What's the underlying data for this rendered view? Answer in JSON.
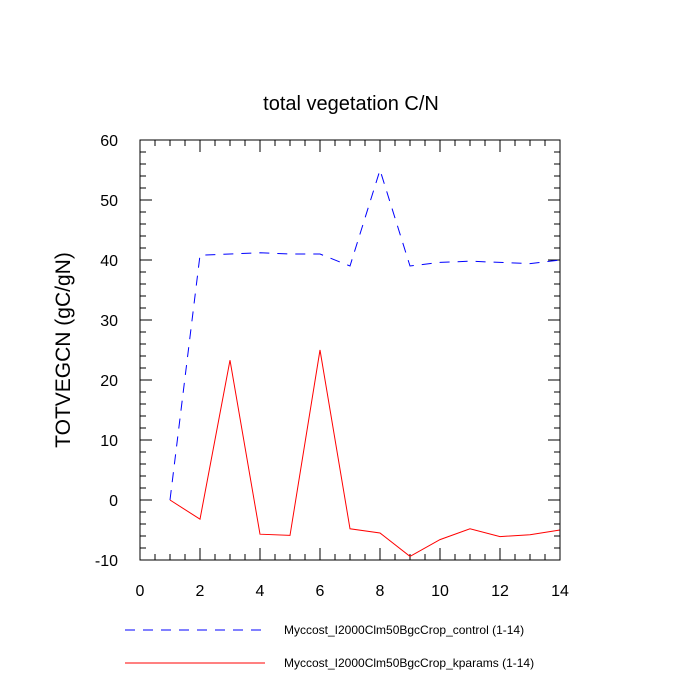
{
  "chart_data": {
    "type": "line",
    "title": "total vegetation C/N",
    "xlabel": "",
    "ylabel": "TOTVEGCN  (gC/gN)",
    "xlim": [
      0,
      14
    ],
    "ylim": [
      -10,
      60
    ],
    "x_ticks": [
      0,
      2,
      4,
      6,
      8,
      10,
      12,
      14
    ],
    "y_ticks": [
      -10,
      0,
      10,
      20,
      30,
      40,
      50,
      60
    ],
    "x": [
      1,
      2,
      3,
      4,
      5,
      6,
      7,
      8,
      9,
      10,
      11,
      12,
      13,
      14
    ],
    "series": [
      {
        "name": "Myccost_I2000Clm50BgcCrop_control (1-14)",
        "color": "#0000ff",
        "style": "dashed",
        "values": [
          0,
          40.8,
          41.0,
          41.2,
          41.0,
          41.0,
          39.0,
          55.0,
          39.0,
          39.6,
          39.8,
          39.6,
          39.4,
          40.0
        ]
      },
      {
        "name": "Myccost_I2000Clm50BgcCrop_kparams (1-14)",
        "color": "#ff0000",
        "style": "solid",
        "values": [
          0,
          -3.2,
          23.3,
          -5.7,
          -5.9,
          25.0,
          -4.8,
          -5.5,
          -9.4,
          -6.6,
          -4.8,
          -6.1,
          -5.8,
          -5.0
        ]
      }
    ],
    "grid": false
  }
}
